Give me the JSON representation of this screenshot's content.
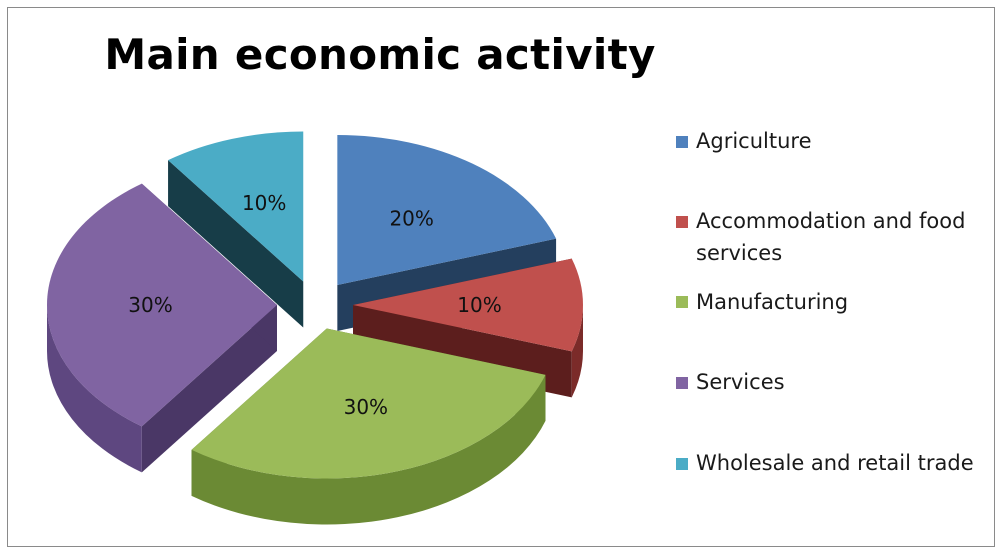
{
  "chart_data": {
    "type": "pie",
    "title": "Main economic activity",
    "style": "3d-exploded",
    "slices": [
      {
        "label": "Agriculture",
        "value": 20,
        "display": "20%",
        "color": "#4f81bd",
        "side": "#2b4d73",
        "dark": "#243f5e"
      },
      {
        "label": "Accommodation and food services",
        "value": 10,
        "display": "10%",
        "color": "#c0504d",
        "side": "#7b2b29",
        "dark": "#5c1e1d"
      },
      {
        "label": "Manufacturing",
        "value": 30,
        "display": "30%",
        "color": "#9bbb59",
        "side": "#6b8a34",
        "dark": "#556d2a"
      },
      {
        "label": "Services",
        "value": 30,
        "display": "30%",
        "color": "#8064a2",
        "side": "#5e4780",
        "dark": "#4a3766"
      },
      {
        "label": "Wholesale and retail trade",
        "value": 10,
        "display": "10%",
        "color": "#4bacc6",
        "side": "#1f4f5e",
        "dark": "#173d48"
      }
    ],
    "legend_position": "right"
  },
  "legend": {
    "items": [
      {
        "line1": "Agriculture",
        "line2": ""
      },
      {
        "line1": "Accommodation and food",
        "line2": "services"
      },
      {
        "line1": "Manufacturing",
        "line2": ""
      },
      {
        "line1": "Services",
        "line2": ""
      },
      {
        "line1": "Wholesale and retail trade",
        "line2": ""
      }
    ]
  }
}
